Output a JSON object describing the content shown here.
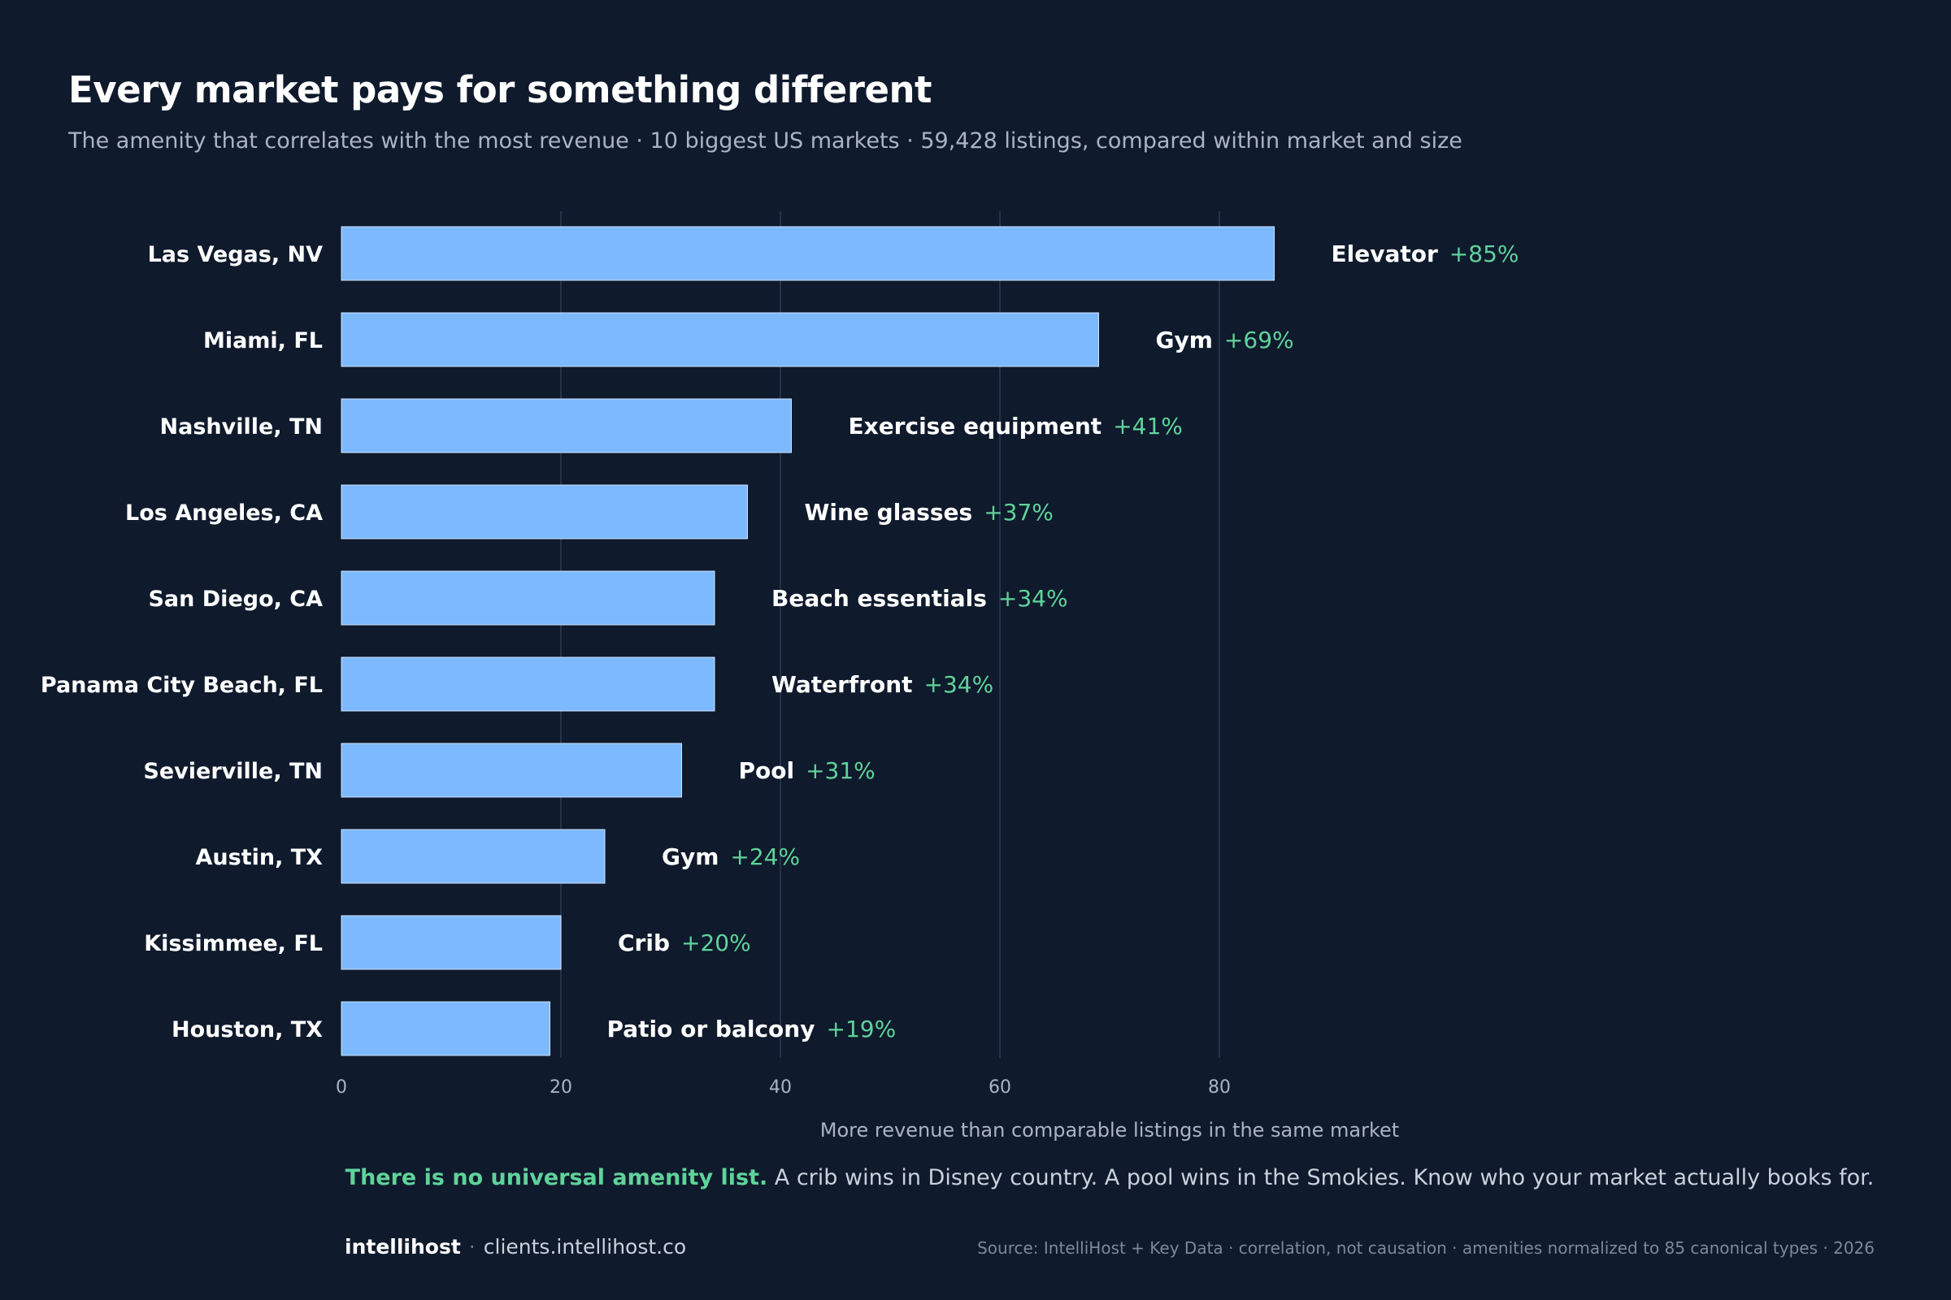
{
  "header": {
    "title": "Every market pays for something different",
    "subtitle": "The amenity that correlates with the most revenue · 10 biggest US markets · 59,428 listings, compared within market and size"
  },
  "chart_data": {
    "type": "bar",
    "orientation": "horizontal",
    "categories": [
      "Las Vegas, NV",
      "Miami, FL",
      "Nashville, TN",
      "Los Angeles, CA",
      "San Diego, CA",
      "Panama City Beach, FL",
      "Sevierville, TN",
      "Austin, TX",
      "Kissimmee, FL",
      "Houston, TX"
    ],
    "values": [
      85,
      69,
      41,
      37,
      34,
      34,
      31,
      24,
      20,
      19
    ],
    "amenities": [
      "Elevator",
      "Gym",
      "Exercise equipment",
      "Wine glasses",
      "Beach essentials",
      "Waterfront",
      "Pool",
      "Gym",
      "Crib",
      "Patio or balcony"
    ],
    "value_labels": [
      "+85%",
      "+69%",
      "+41%",
      "+37%",
      "+34%",
      "+34%",
      "+31%",
      "+24%",
      "+20%",
      "+19%"
    ],
    "xlabel": "More revenue than comparable listings in the same market",
    "ylabel": "",
    "xlim": [
      0,
      85
    ],
    "xticks": [
      0,
      20,
      40,
      60,
      80
    ],
    "grid": true,
    "colors": {
      "bar": "#7cb9ff",
      "value": "#5fd39a",
      "grid": "#26324a",
      "tick": "#aab4c4"
    }
  },
  "takeaway": {
    "highlight": "There is no universal amenity list.",
    "text": " A crib wins in Disney country. A pool wins in the Smokies. Know who your market actually books for."
  },
  "footer": {
    "brand": "intellihost",
    "separator": "·",
    "url": "clients.intellihost.co",
    "source": "Source: IntelliHost + Key Data · correlation, not causation · amenities normalized to 85 canonical types · 2026"
  }
}
